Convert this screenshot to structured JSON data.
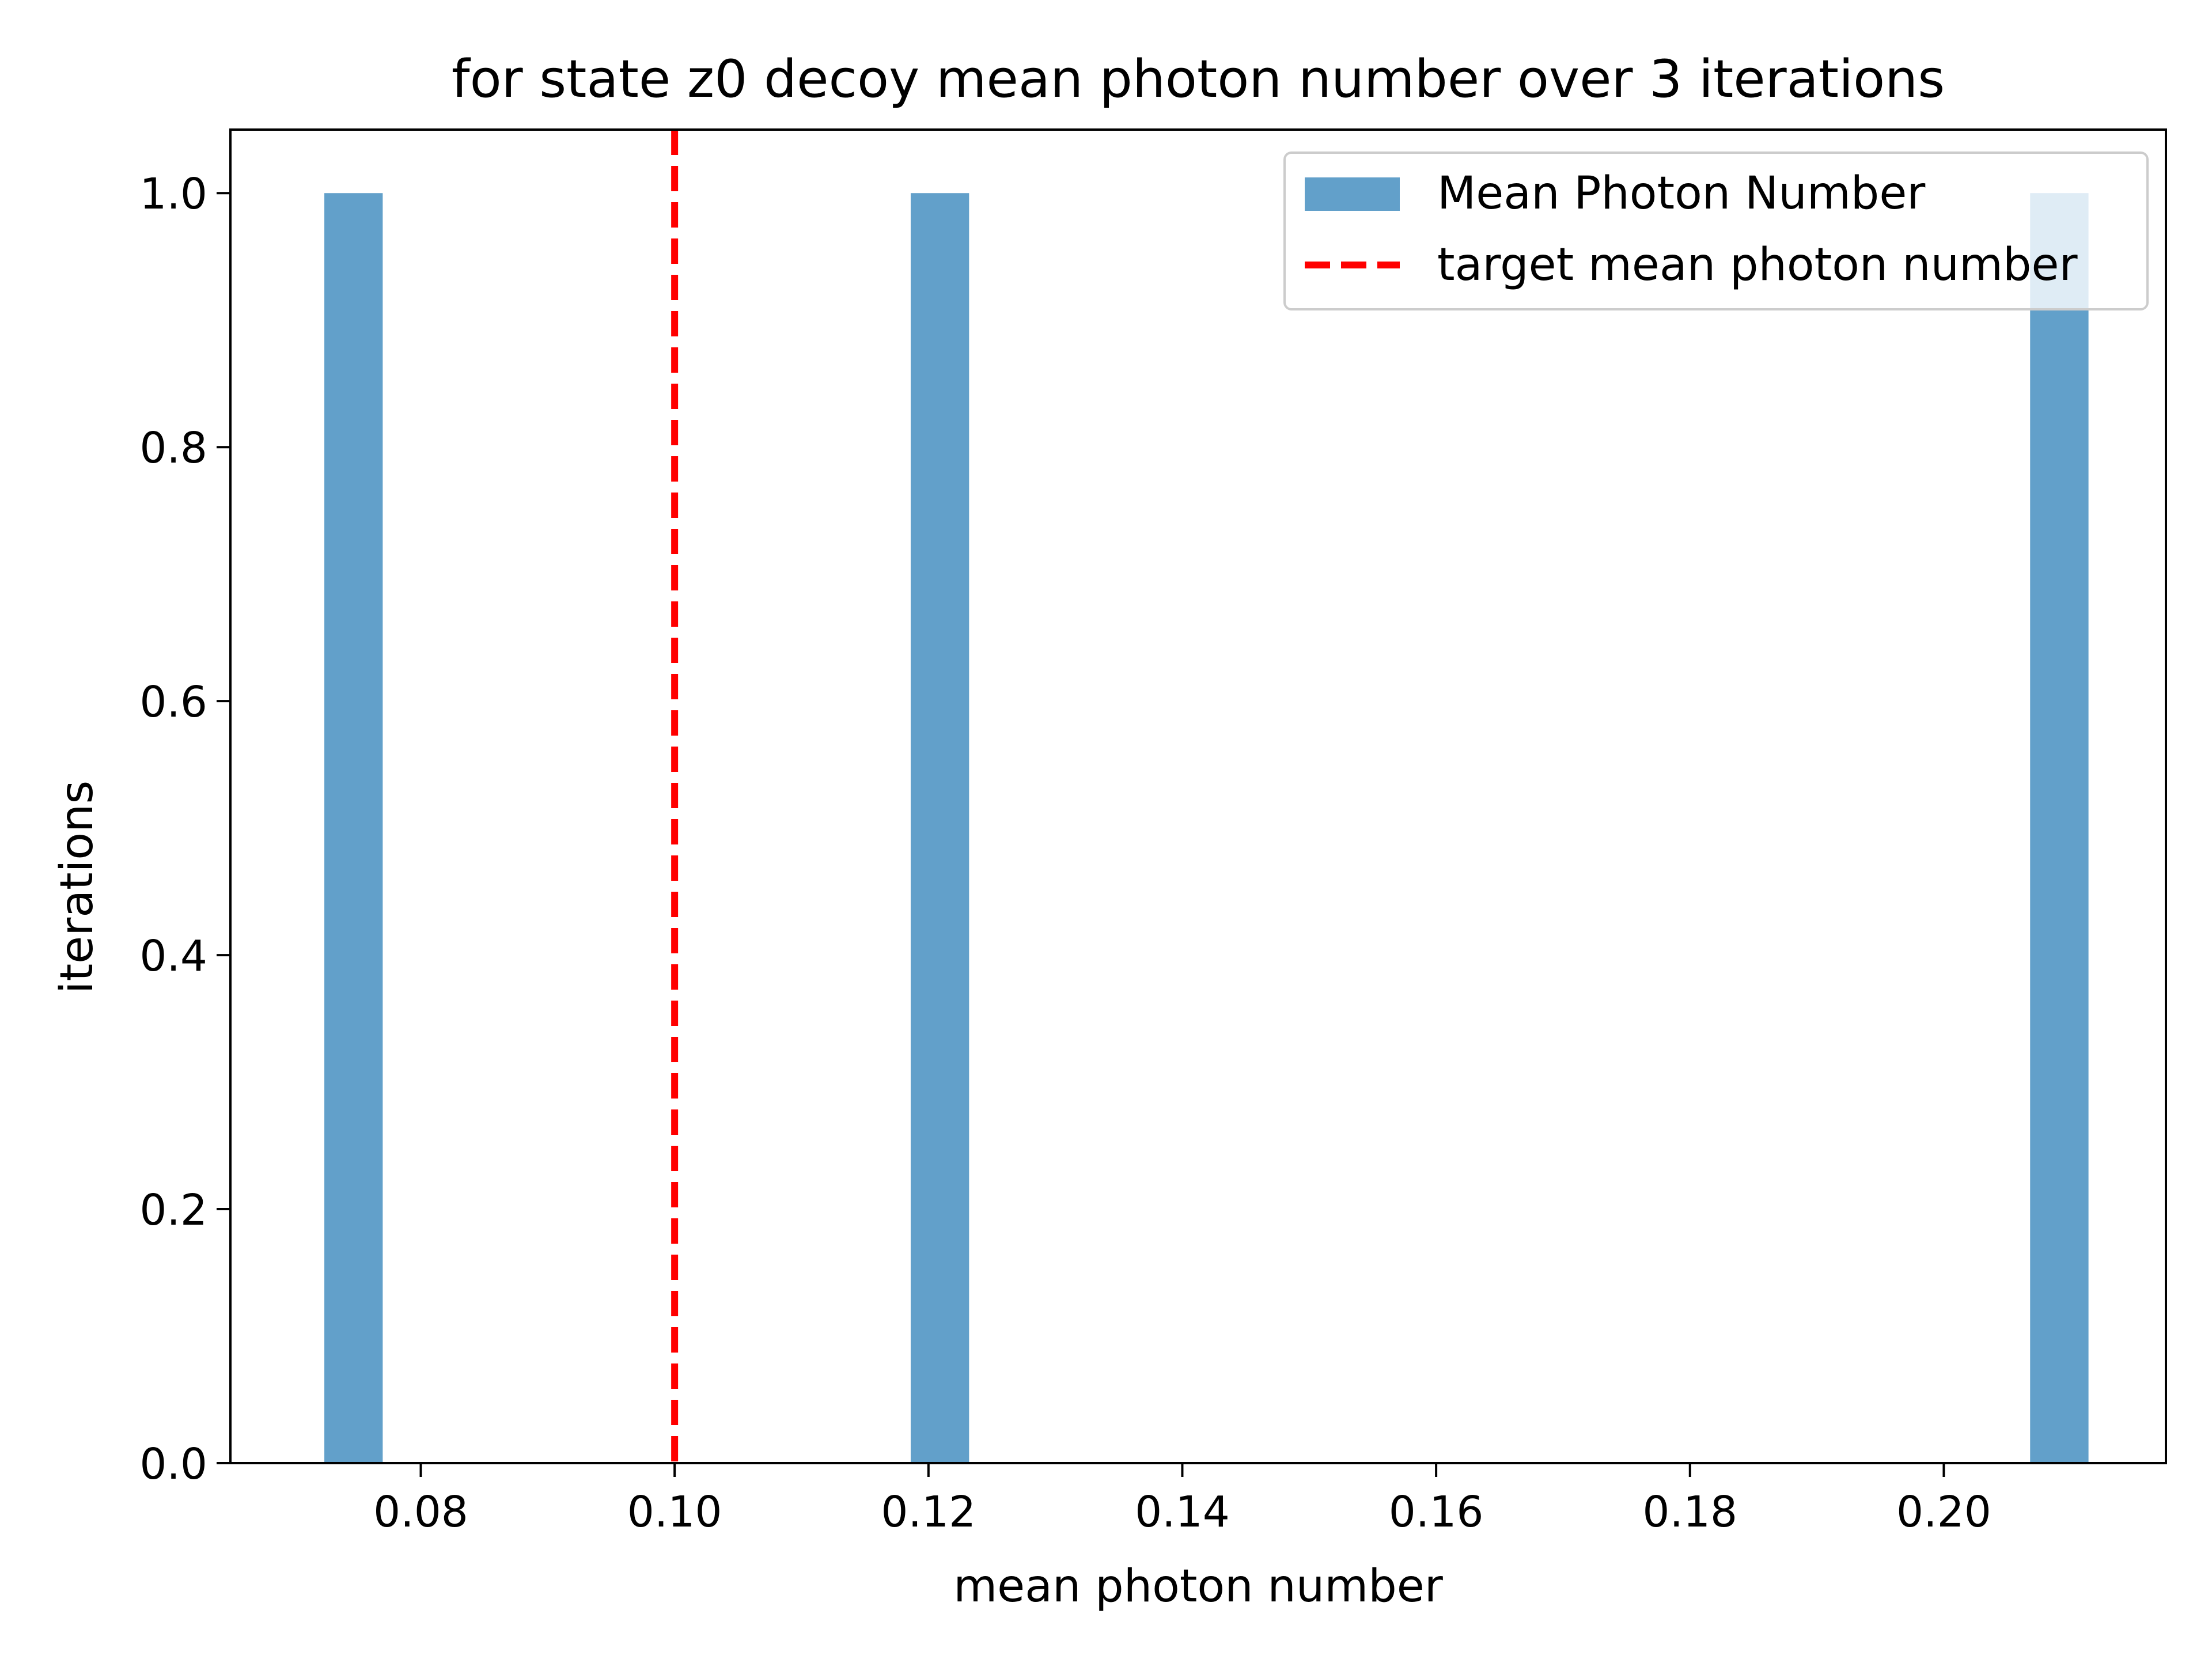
{
  "chart_data": {
    "type": "bar",
    "title": "for state z0 decoy mean photon number over 3 iterations",
    "xlabel": "mean photon number",
    "ylabel": "iterations",
    "xlim": [
      0.065,
      0.2175
    ],
    "ylim": [
      0.0,
      1.05
    ],
    "xticks": [
      0.08,
      0.1,
      0.12,
      0.14,
      0.16,
      0.18,
      0.2
    ],
    "xtick_labels": [
      "0.08",
      "0.10",
      "0.12",
      "0.14",
      "0.16",
      "0.18",
      "0.20"
    ],
    "yticks": [
      0.0,
      0.2,
      0.4,
      0.6,
      0.8,
      1.0
    ],
    "ytick_labels": [
      "0.0",
      "0.2",
      "0.4",
      "0.6",
      "0.8",
      "1.0"
    ],
    "grid": false,
    "legend_position": "top-right",
    "series": [
      {
        "name": "Mean Photon Number",
        "kind": "histogram",
        "color": "#1f77b4",
        "opacity": 0.7,
        "bins": [
          {
            "x0": 0.0724,
            "x1": 0.077,
            "count": 1
          },
          {
            "x0": 0.1186,
            "x1": 0.1232,
            "count": 1
          },
          {
            "x0": 0.2068,
            "x1": 0.2114,
            "count": 1
          }
        ]
      },
      {
        "name": "target mean photon number",
        "kind": "vline",
        "x": 0.1,
        "color": "#ff0000",
        "dash": true
      }
    ]
  }
}
